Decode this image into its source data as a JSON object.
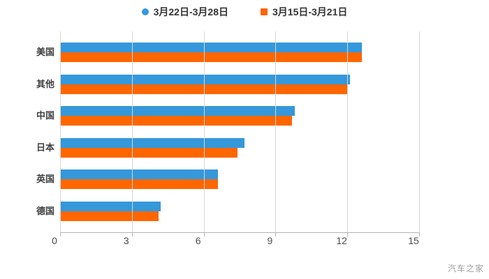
{
  "legend": {
    "items": [
      {
        "label": "3月22日-3月28日",
        "color": "#3498db",
        "marker": "circle"
      },
      {
        "label": "3月15日-3月21日",
        "color": "#ff6600",
        "marker": "square"
      }
    ]
  },
  "watermark": "汽车之家",
  "chart_data": {
    "type": "bar",
    "orientation": "horizontal",
    "title": "",
    "xlabel": "",
    "ylabel": "",
    "categories": [
      "美国",
      "其他",
      "中国",
      "日本",
      "英国",
      "德国"
    ],
    "series": [
      {
        "name": "3月22日-3月28日",
        "color": "#3498db",
        "values": [
          12.6,
          12.1,
          9.8,
          7.7,
          6.6,
          4.2
        ]
      },
      {
        "name": "3月15日-3月21日",
        "color": "#ff6600",
        "values": [
          12.6,
          12.0,
          9.7,
          7.4,
          6.6,
          4.1
        ]
      }
    ],
    "xlim": [
      0,
      15
    ],
    "xticks": [
      0,
      3,
      6,
      9,
      12,
      15
    ],
    "grid": "vertical-only",
    "gridline_color": "#d8d8d8",
    "legend_position": "top-center"
  }
}
